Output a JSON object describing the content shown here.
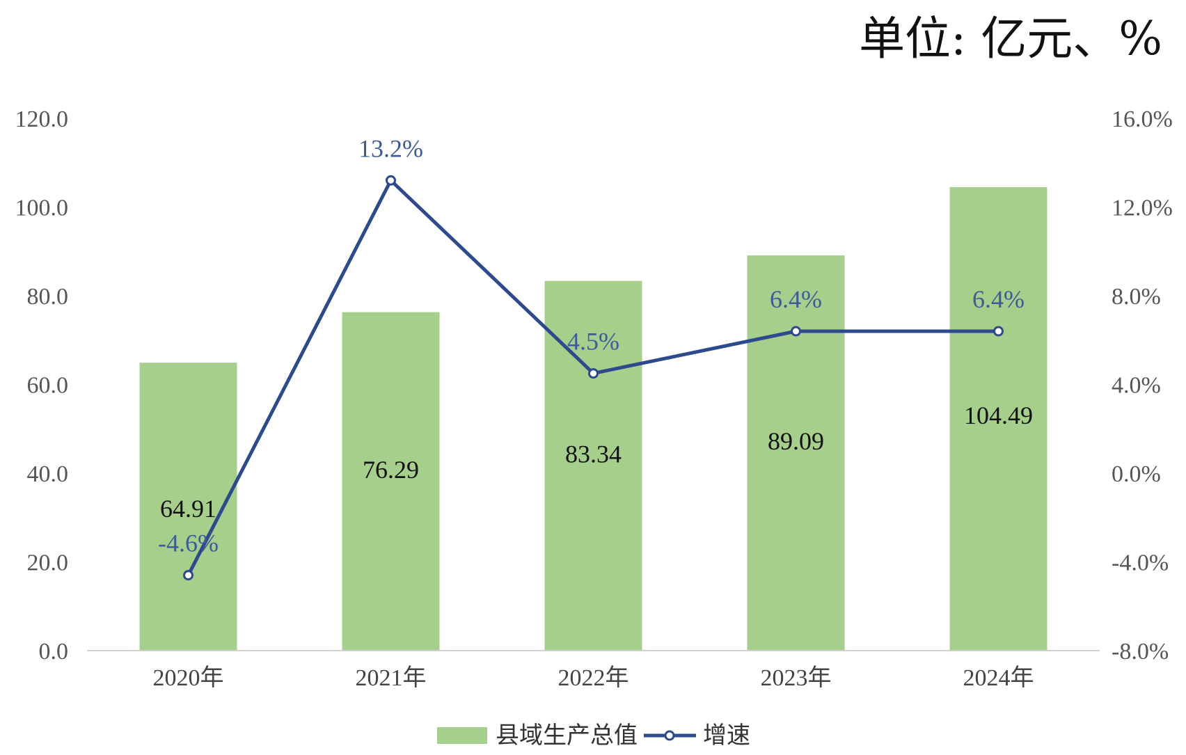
{
  "unit_label": "单位: 亿元、%",
  "chart_data": {
    "type": "bar",
    "categories": [
      "2020年",
      "2021年",
      "2022年",
      "2023年",
      "2024年"
    ],
    "series": [
      {
        "name": "县域生产总值",
        "type": "bar",
        "axis": "left",
        "values": [
          64.91,
          76.29,
          83.34,
          89.09,
          104.49
        ],
        "labels": [
          "64.91",
          "76.29",
          "83.34",
          "89.09",
          "104.49"
        ],
        "color": "#a6cf8c"
      },
      {
        "name": "增速",
        "type": "line",
        "axis": "right",
        "values": [
          -4.6,
          13.2,
          4.5,
          6.4,
          6.4
        ],
        "labels": [
          "-4.6%",
          "13.2%",
          "4.5%",
          "6.4%",
          "6.4%"
        ],
        "color": "#2e4a8e"
      }
    ],
    "y_left": {
      "min": 0,
      "max": 120,
      "ticks": [
        "0.0",
        "20.0",
        "40.0",
        "60.0",
        "80.0",
        "100.0",
        "120.0"
      ]
    },
    "y_right": {
      "min": -8,
      "max": 16,
      "ticks": [
        "-8.0%",
        "-4.0%",
        "0.0%",
        "4.0%",
        "8.0%",
        "12.0%",
        "16.0%"
      ]
    },
    "grid": false,
    "legend_position": "bottom"
  }
}
